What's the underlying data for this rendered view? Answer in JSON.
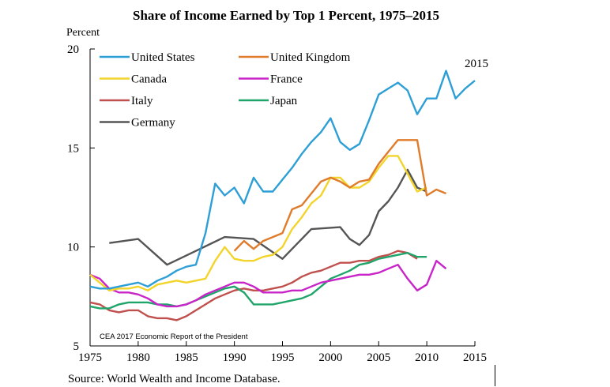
{
  "chart_data": {
    "type": "line",
    "title": "Share of Income Earned by Top 1 Percent, 1975–2015",
    "ylabel": "Percent",
    "xlabel": "",
    "xlim": [
      1975,
      2015
    ],
    "ylim": [
      5,
      20
    ],
    "xticks": [
      1975,
      1980,
      1985,
      1990,
      1995,
      2000,
      2005,
      2010,
      2015
    ],
    "yticks": [
      5,
      10,
      15,
      20
    ],
    "grid": false,
    "legend_position": "top-left",
    "annotations": [
      "2015",
      "CEA 2017 Economic Report of the President"
    ],
    "source": "Source: World Wealth and Income Database.",
    "series": [
      {
        "name": "United States",
        "color": "#2e9fd6",
        "x": [
          1975,
          1976,
          1977,
          1978,
          1979,
          1980,
          1981,
          1982,
          1983,
          1984,
          1985,
          1986,
          1987,
          1988,
          1989,
          1990,
          1991,
          1992,
          1993,
          1994,
          1995,
          1996,
          1997,
          1998,
          1999,
          2000,
          2001,
          2002,
          2003,
          2004,
          2005,
          2006,
          2007,
          2008,
          2009,
          2010,
          2011,
          2012,
          2013,
          2014,
          2015
        ],
        "y": [
          8.0,
          7.9,
          7.9,
          8.0,
          8.1,
          8.2,
          8.0,
          8.3,
          8.5,
          8.8,
          9.0,
          9.1,
          10.7,
          13.2,
          12.6,
          13.0,
          12.2,
          13.5,
          12.8,
          12.8,
          13.4,
          14.0,
          14.7,
          15.3,
          15.8,
          16.5,
          15.3,
          14.9,
          15.2,
          16.4,
          17.7,
          18.0,
          18.3,
          17.9,
          16.7,
          17.5,
          17.5,
          18.9,
          17.5,
          18.0,
          18.4
        ]
      },
      {
        "name": "United Kingdom",
        "color": "#e07b2a",
        "x": [
          1990,
          1991,
          1992,
          1993,
          1994,
          1995,
          1996,
          1997,
          1998,
          1999,
          2000,
          2001,
          2002,
          2003,
          2004,
          2005,
          2006,
          2007,
          2008,
          2009,
          2010,
          2011,
          2012
        ],
        "y": [
          9.8,
          10.3,
          9.9,
          10.3,
          10.5,
          10.7,
          11.9,
          12.1,
          12.7,
          13.3,
          13.5,
          13.3,
          13.0,
          13.3,
          13.4,
          14.2,
          14.8,
          15.4,
          15.4,
          15.4,
          12.6,
          12.9,
          12.7
        ]
      },
      {
        "name": "Canada",
        "color": "#f2d42a",
        "x": [
          1975,
          1976,
          1977,
          1978,
          1979,
          1980,
          1981,
          1982,
          1983,
          1984,
          1985,
          1986,
          1987,
          1988,
          1989,
          1990,
          1991,
          1992,
          1993,
          1994,
          1995,
          1996,
          1997,
          1998,
          1999,
          2000,
          2001,
          2002,
          2003,
          2004,
          2005,
          2006,
          2007,
          2008,
          2009,
          2010
        ],
        "y": [
          8.6,
          8.2,
          7.8,
          7.9,
          7.9,
          8.0,
          7.8,
          8.1,
          8.2,
          8.3,
          8.2,
          8.3,
          8.4,
          9.3,
          10.0,
          9.4,
          9.3,
          9.3,
          9.5,
          9.6,
          10.0,
          10.9,
          11.5,
          12.2,
          12.6,
          13.5,
          13.5,
          13.0,
          13.0,
          13.3,
          14.0,
          14.6,
          14.6,
          13.7,
          12.8,
          13.0
        ]
      },
      {
        "name": "France",
        "color": "#c824c8",
        "x": [
          1975,
          1976,
          1977,
          1978,
          1979,
          1980,
          1981,
          1982,
          1983,
          1984,
          1985,
          1986,
          1987,
          1988,
          1989,
          1990,
          1991,
          1992,
          1993,
          1994,
          1995,
          1996,
          1997,
          1998,
          1999,
          2000,
          2001,
          2002,
          2003,
          2004,
          2005,
          2006,
          2007,
          2008,
          2009,
          2010,
          2011,
          2012
        ],
        "y": [
          8.6,
          8.4,
          7.9,
          7.7,
          7.7,
          7.6,
          7.4,
          7.1,
          7.0,
          7.0,
          7.1,
          7.3,
          7.6,
          7.8,
          8.0,
          8.2,
          8.2,
          8.0,
          7.7,
          7.7,
          7.7,
          7.8,
          7.8,
          8.0,
          8.2,
          8.3,
          8.4,
          8.5,
          8.6,
          8.6,
          8.7,
          8.9,
          9.1,
          8.4,
          7.8,
          8.1,
          9.3,
          8.9
        ]
      },
      {
        "name": "Italy",
        "color": "#c0504d",
        "x": [
          1975,
          1976,
          1977,
          1978,
          1979,
          1980,
          1981,
          1982,
          1983,
          1984,
          1985,
          1986,
          1987,
          1988,
          1989,
          1990,
          1991,
          1992,
          1993,
          1994,
          1995,
          1996,
          1997,
          1998,
          1999,
          2000,
          2001,
          2002,
          2003,
          2004,
          2005,
          2006,
          2007,
          2008,
          2009
        ],
        "y": [
          7.2,
          7.1,
          6.8,
          6.7,
          6.8,
          6.8,
          6.5,
          6.4,
          6.4,
          6.3,
          6.5,
          6.8,
          7.1,
          7.4,
          7.6,
          7.8,
          7.9,
          7.8,
          7.8,
          7.9,
          8.0,
          8.2,
          8.5,
          8.7,
          8.8,
          9.0,
          9.2,
          9.2,
          9.3,
          9.3,
          9.5,
          9.6,
          9.8,
          9.7,
          9.4
        ]
      },
      {
        "name": "Japan",
        "color": "#1fa56a",
        "x": [
          1975,
          1976,
          1977,
          1978,
          1979,
          1980,
          1981,
          1982,
          1983,
          1984,
          1985,
          1986,
          1987,
          1988,
          1989,
          1990,
          1991,
          1992,
          1993,
          1994,
          1995,
          1996,
          1997,
          1998,
          1999,
          2000,
          2001,
          2002,
          2003,
          2004,
          2005,
          2006,
          2007,
          2008,
          2009,
          2010
        ],
        "y": [
          7.0,
          6.9,
          6.9,
          7.1,
          7.2,
          7.2,
          7.2,
          7.1,
          7.1,
          7.0,
          7.1,
          7.3,
          7.5,
          7.7,
          7.9,
          8.0,
          7.7,
          7.1,
          7.1,
          7.1,
          7.2,
          7.3,
          7.4,
          7.6,
          8.0,
          8.4,
          8.6,
          8.8,
          9.1,
          9.2,
          9.4,
          9.5,
          9.6,
          9.7,
          9.5,
          9.5
        ]
      },
      {
        "name": "Germany",
        "color": "#555555",
        "x": [
          1977,
          1980,
          1983,
          1986,
          1989,
          1992,
          1995,
          1998,
          2001,
          2002,
          2003,
          2004,
          2005,
          2006,
          2007,
          2008,
          2009,
          2010
        ],
        "y": [
          10.2,
          10.4,
          9.1,
          9.8,
          10.5,
          10.4,
          9.4,
          10.9,
          11.0,
          10.4,
          10.1,
          10.6,
          11.8,
          12.3,
          13.0,
          13.9,
          13.0,
          12.8
        ]
      }
    ]
  }
}
